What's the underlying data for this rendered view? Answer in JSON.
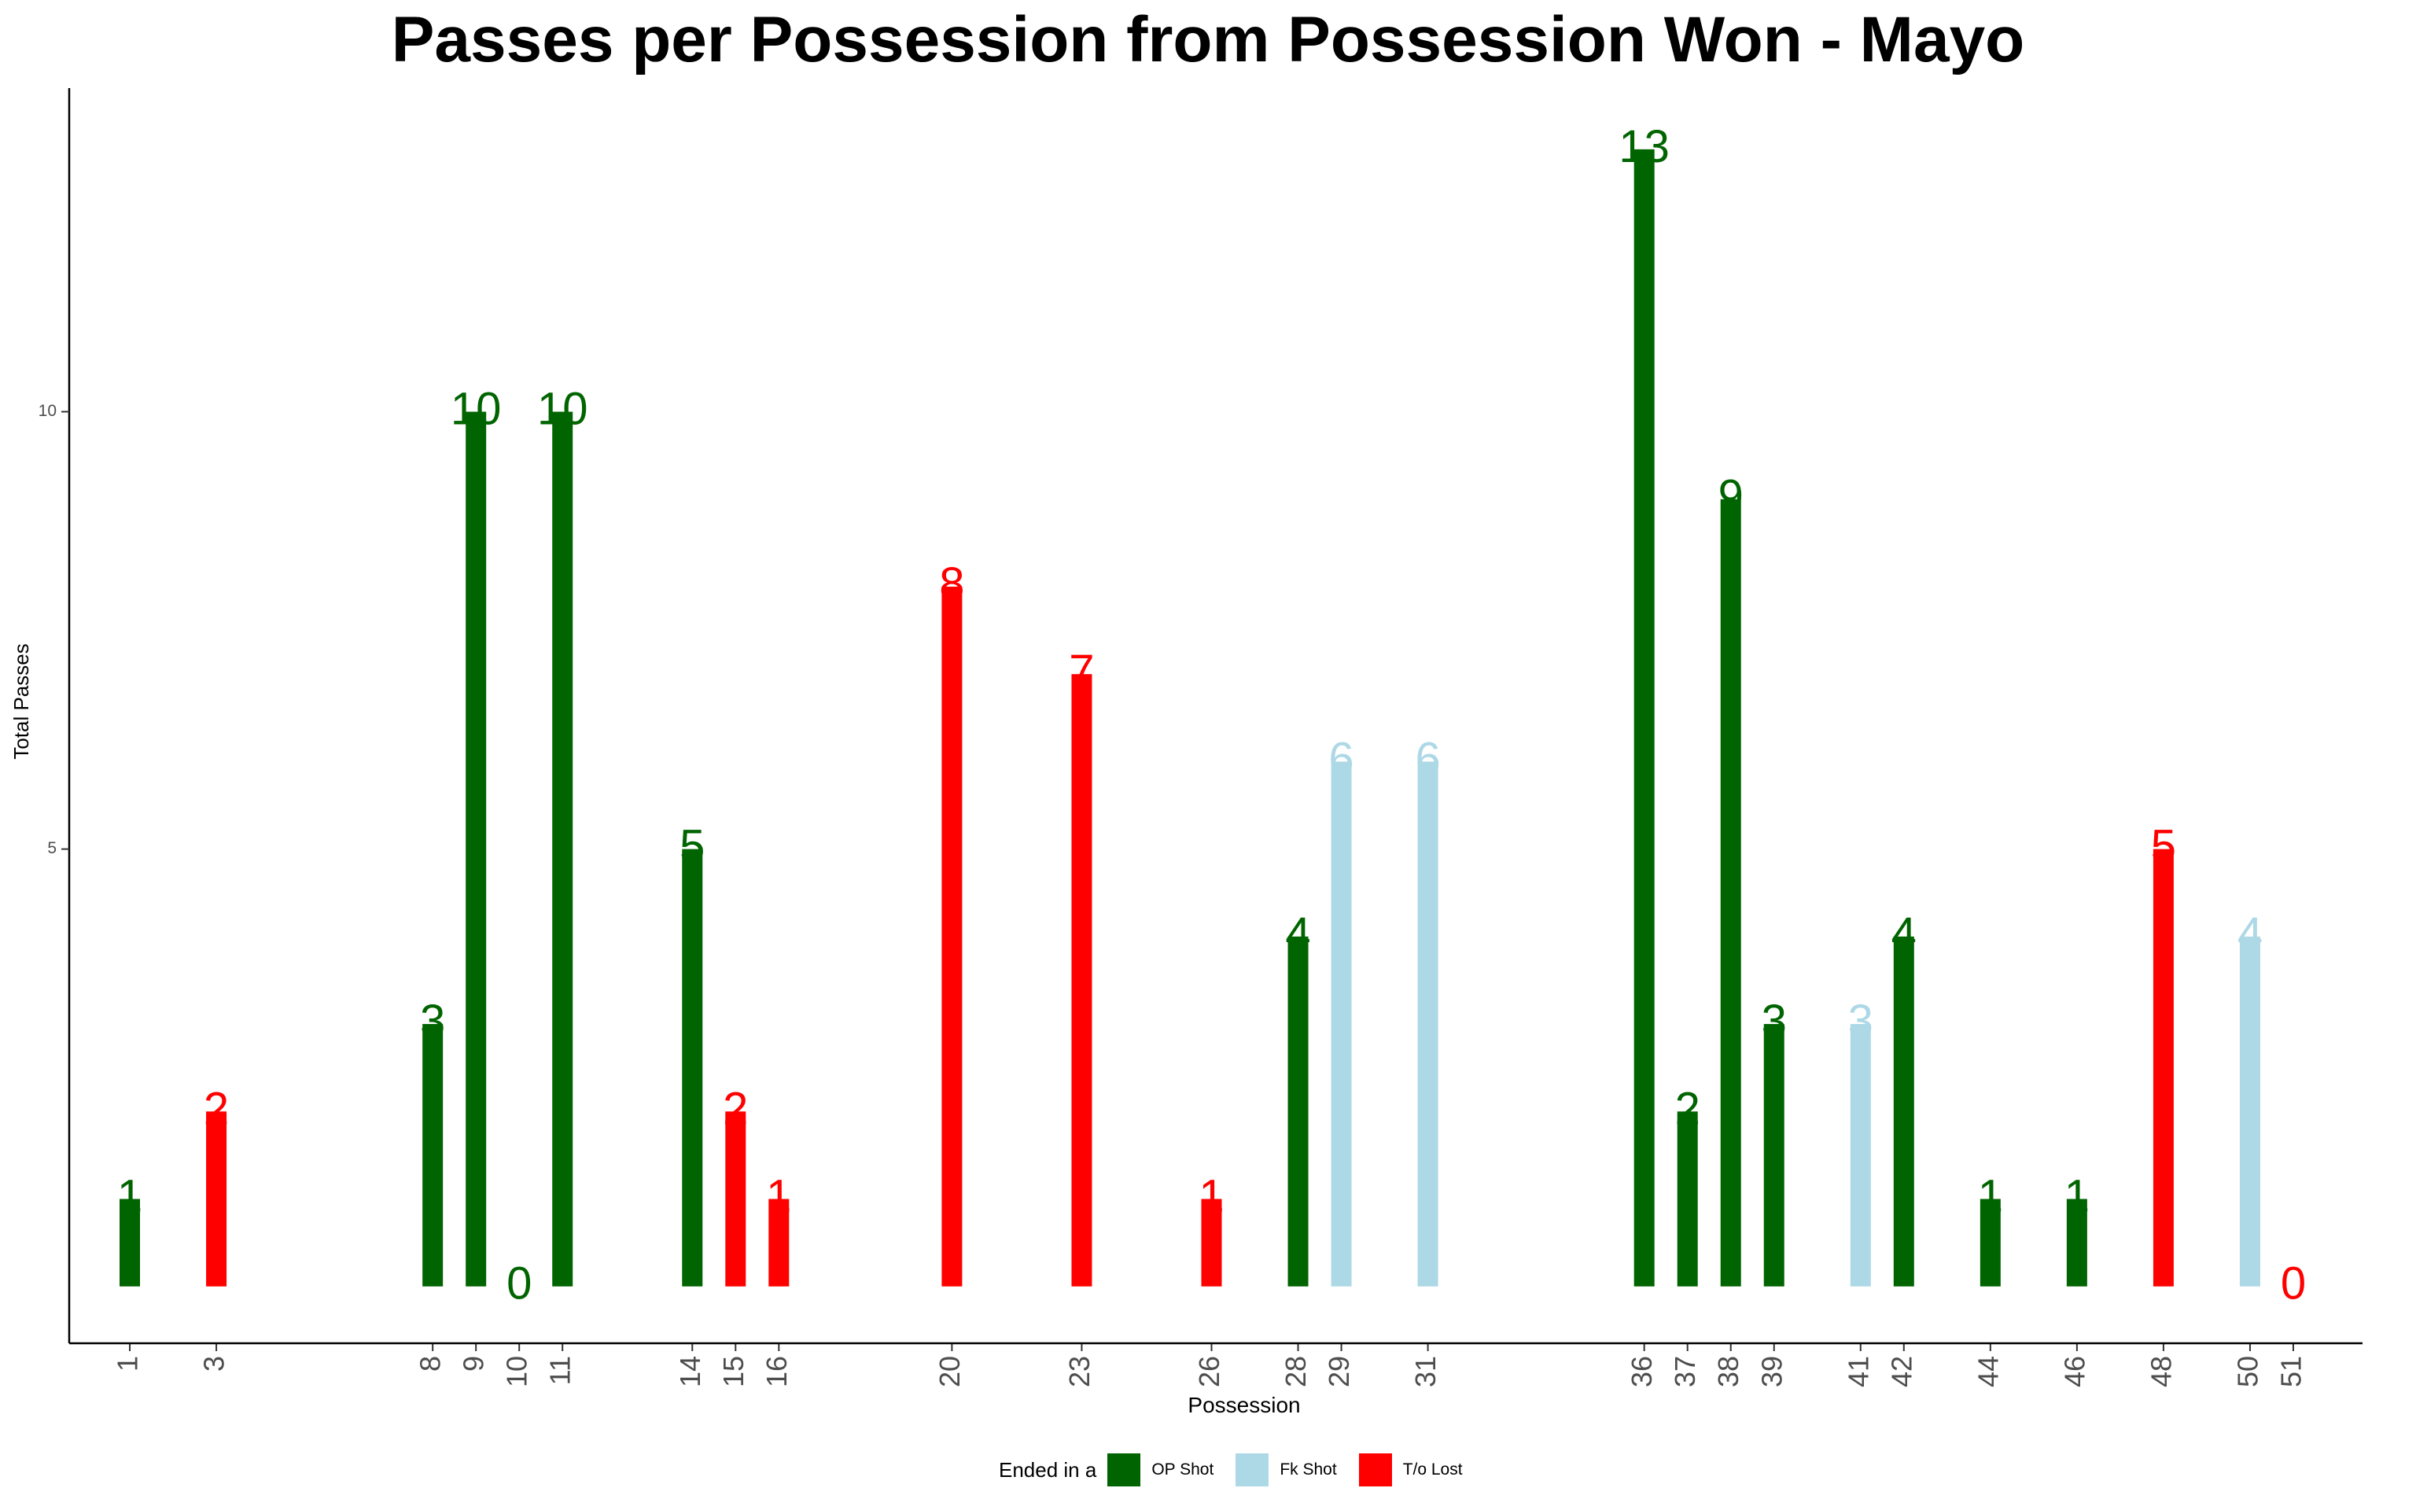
{
  "chart_data": {
    "type": "bar",
    "title": "Passes per Possession from Possession Won - Mayo",
    "xlabel": "Possession",
    "ylabel": "Total Passes",
    "ylim": [
      -0.65,
      13.7
    ],
    "xlim": [
      -0.4,
      52.6
    ],
    "y_ticks": [
      5,
      10
    ],
    "grid": false,
    "legend_position": "bottom",
    "legend_title": "Ended in a",
    "categories": [
      "OP Shot",
      "Fk Shot",
      "T/o Lost"
    ],
    "colors": {
      "OP Shot": "#006400",
      "Fk Shot": "#ADD8E6",
      "T/o Lost": "#FF0000"
    },
    "bars": [
      {
        "x": 1,
        "label": "1",
        "value": 1,
        "category": "OP Shot"
      },
      {
        "x": 3,
        "label": "3",
        "value": 2,
        "category": "T/o Lost"
      },
      {
        "x": 8,
        "label": "8",
        "value": 3,
        "category": "OP Shot"
      },
      {
        "x": 9,
        "label": "9",
        "value": 10,
        "category": "OP Shot"
      },
      {
        "x": 10,
        "label": "10",
        "value": 0,
        "category": "OP Shot"
      },
      {
        "x": 11,
        "label": "11",
        "value": 10,
        "category": "OP Shot"
      },
      {
        "x": 14,
        "label": "14",
        "value": 5,
        "category": "OP Shot"
      },
      {
        "x": 15,
        "label": "15",
        "value": 2,
        "category": "T/o Lost"
      },
      {
        "x": 16,
        "label": "16",
        "value": 1,
        "category": "T/o Lost"
      },
      {
        "x": 20,
        "label": "20",
        "value": 8,
        "category": "T/o Lost"
      },
      {
        "x": 23,
        "label": "23",
        "value": 7,
        "category": "T/o Lost"
      },
      {
        "x": 26,
        "label": "26",
        "value": 1,
        "category": "T/o Lost"
      },
      {
        "x": 28,
        "label": "28",
        "value": 4,
        "category": "OP Shot"
      },
      {
        "x": 29,
        "label": "29",
        "value": 6,
        "category": "Fk Shot"
      },
      {
        "x": 31,
        "label": "31",
        "value": 6,
        "category": "Fk Shot"
      },
      {
        "x": 36,
        "label": "36",
        "value": 13,
        "category": "OP Shot"
      },
      {
        "x": 37,
        "label": "37",
        "value": 2,
        "category": "OP Shot"
      },
      {
        "x": 38,
        "label": "38",
        "value": 9,
        "category": "OP Shot"
      },
      {
        "x": 39,
        "label": "39",
        "value": 3,
        "category": "OP Shot"
      },
      {
        "x": 41,
        "label": "41",
        "value": 3,
        "category": "Fk Shot"
      },
      {
        "x": 42,
        "label": "42",
        "value": 4,
        "category": "OP Shot"
      },
      {
        "x": 44,
        "label": "44",
        "value": 1,
        "category": "OP Shot"
      },
      {
        "x": 46,
        "label": "46",
        "value": 1,
        "category": "OP Shot"
      },
      {
        "x": 48,
        "label": "48",
        "value": 5,
        "category": "T/o Lost"
      },
      {
        "x": 50,
        "label": "50",
        "value": 4,
        "category": "Fk Shot"
      },
      {
        "x": 51,
        "label": "51",
        "value": 0,
        "category": "T/o Lost"
      }
    ]
  }
}
